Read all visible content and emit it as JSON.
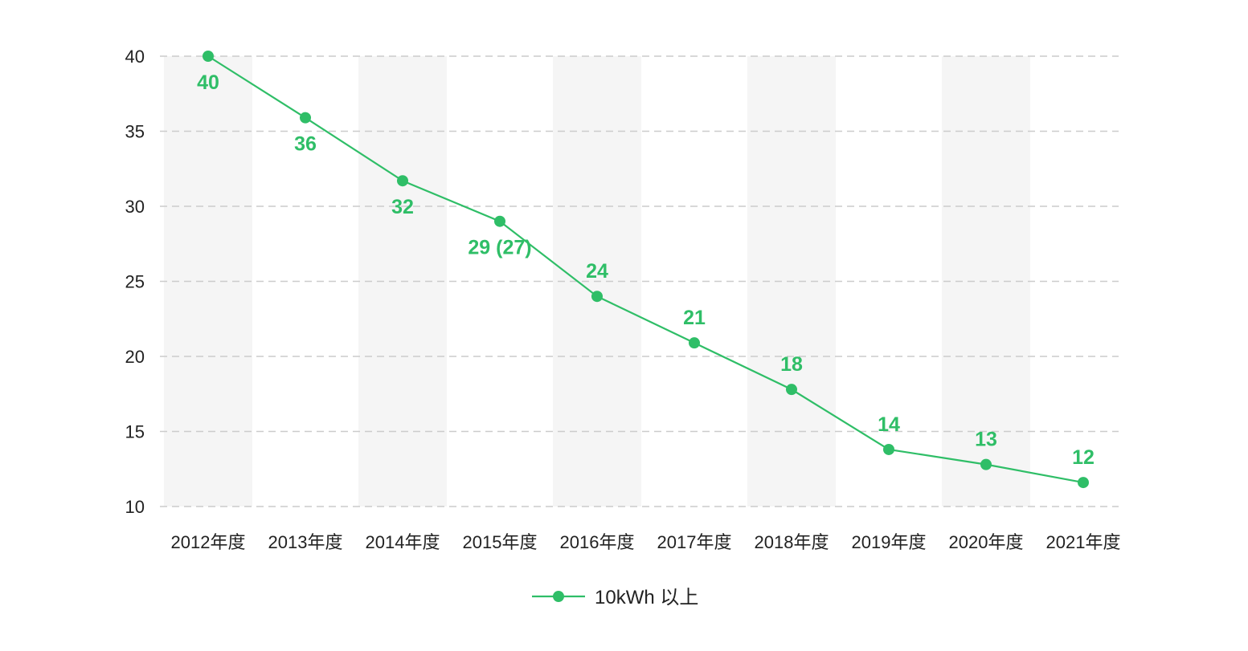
{
  "chart_data": {
    "type": "line",
    "categories": [
      "2012年度",
      "2013年度",
      "2014年度",
      "2015年度",
      "2016年度",
      "2017年度",
      "2018年度",
      "2019年度",
      "2020年度",
      "2021年度"
    ],
    "series": [
      {
        "name": "10kWh 以上",
        "values": [
          40,
          35.9,
          31.7,
          29,
          24,
          20.9,
          17.8,
          13.8,
          12.8,
          11.6
        ],
        "labels": [
          "40",
          "36",
          "32",
          "29 (27)",
          "24",
          "21",
          "18",
          "14",
          "13",
          "12"
        ],
        "label_position": [
          "below",
          "below",
          "below",
          "below",
          "above",
          "above",
          "above",
          "above",
          "above",
          "above"
        ],
        "color": "#2fbe67"
      }
    ],
    "ylim": [
      10,
      40
    ],
    "yticks": [
      10,
      15,
      20,
      25,
      30,
      35,
      40
    ],
    "xlabel": "",
    "ylabel": "",
    "grid": "horizontal-dashed",
    "band_color": "#f5f5f5",
    "grid_color": "#cccccc",
    "legend_position": "bottom-center"
  }
}
